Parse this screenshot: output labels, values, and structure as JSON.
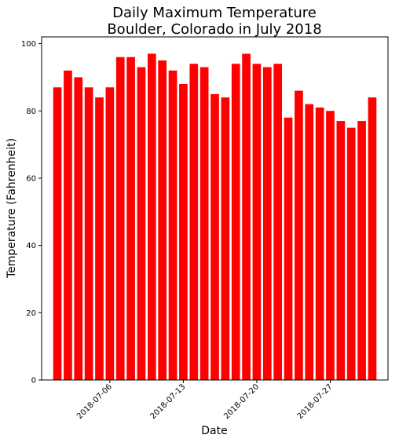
{
  "chart_data": {
    "type": "bar",
    "title_lines": [
      "Daily Maximum Temperature",
      "Boulder, Colorado in July 2018"
    ],
    "xlabel": "Date",
    "ylabel": "Temperature (Fahrenheit)",
    "ylim": [
      0,
      102
    ],
    "yticks": [
      0,
      20,
      40,
      60,
      80,
      100
    ],
    "xlim": [
      "2018-06-29T12:00",
      "2018-08-01T12:00"
    ],
    "xticks": [
      "2018-07-06",
      "2018-07-13",
      "2018-07-20",
      "2018-07-27"
    ],
    "grid": false,
    "bar_color": "#ff0000",
    "x": [
      "2018-07-01",
      "2018-07-02",
      "2018-07-03",
      "2018-07-04",
      "2018-07-05",
      "2018-07-06",
      "2018-07-07",
      "2018-07-08",
      "2018-07-09",
      "2018-07-10",
      "2018-07-11",
      "2018-07-12",
      "2018-07-13",
      "2018-07-14",
      "2018-07-15",
      "2018-07-16",
      "2018-07-17",
      "2018-07-18",
      "2018-07-19",
      "2018-07-20",
      "2018-07-21",
      "2018-07-22",
      "2018-07-23",
      "2018-07-24",
      "2018-07-25",
      "2018-07-26",
      "2018-07-27",
      "2018-07-28",
      "2018-07-29",
      "2018-07-30",
      "2018-07-31"
    ],
    "values": [
      87,
      92,
      90,
      87,
      84,
      87,
      96,
      96,
      93,
      97,
      95,
      92,
      88,
      94,
      93,
      85,
      84,
      94,
      97,
      94,
      93,
      94,
      78,
      86,
      82,
      81,
      80,
      77,
      75,
      77,
      84
    ]
  }
}
